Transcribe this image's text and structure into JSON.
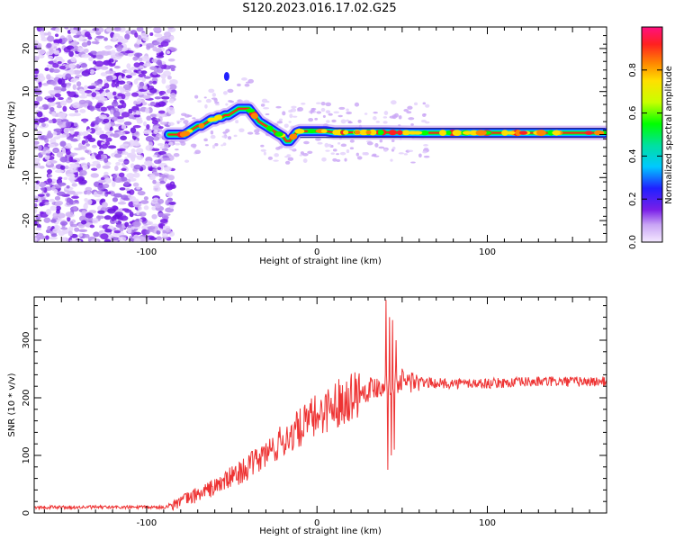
{
  "title": "S120.2023.016.17.02.G25",
  "chart_data": [
    {
      "type": "heatmap",
      "title": "S120.2023.016.17.02.G25",
      "xlabel": "Height of straight line (km)",
      "ylabel": "Frequency (Hz)",
      "xlim": [
        -166,
        170
      ],
      "ylim": [
        -25,
        25
      ],
      "x_ticks": [
        -100,
        0,
        100
      ],
      "y_ticks": [
        -20,
        -10,
        0,
        10,
        20
      ],
      "colorbar": {
        "label": "Normalized spectral amplitude",
        "range": [
          0,
          1
        ],
        "ticks": [
          0.0,
          0.2,
          0.4,
          0.6,
          0.8
        ],
        "colors": [
          "#f4e8ff",
          "#c9a5f5",
          "#7a1fe8",
          "#2020ff",
          "#00c8ff",
          "#00e0a0",
          "#00ff00",
          "#c8ff00",
          "#ffe000",
          "#ff8800",
          "#ff2020",
          "#ff1080"
        ]
      },
      "ridge": {
        "x": [
          -87,
          -83,
          -80,
          -78,
          -76,
          -74,
          -72,
          -70,
          -68,
          -66,
          -64,
          -62,
          -60,
          -58,
          -56,
          -54,
          -52,
          -50,
          -48,
          -46,
          -44,
          -42,
          -40,
          -38,
          -36,
          -34,
          -32,
          -30,
          -28,
          -26,
          -24,
          -22,
          -20,
          -18,
          -16,
          -14,
          -12,
          -10,
          -8,
          -5,
          0,
          5,
          10,
          20,
          30,
          40,
          60,
          80,
          100,
          120,
          140,
          160,
          169
        ],
        "y": [
          0,
          0,
          0,
          0,
          0.5,
          1.0,
          1.5,
          2.0,
          2.0,
          2.5,
          3.0,
          3.5,
          3.5,
          4.0,
          4.0,
          4.5,
          4.5,
          5.0,
          5.5,
          6.0,
          6.0,
          6.0,
          6.0,
          5.0,
          4.0,
          3.0,
          2.5,
          2.0,
          1.5,
          1.0,
          0.5,
          0.0,
          -0.5,
          -1.5,
          -1.5,
          -0.5,
          0.5,
          0.8,
          0.8,
          0.8,
          0.8,
          0.8,
          0.5,
          0.5,
          0.5,
          0.5,
          0.4,
          0.4,
          0.4,
          0.4,
          0.4,
          0.4,
          0.4
        ]
      }
    },
    {
      "type": "line",
      "xlabel": "Height of straight line (km)",
      "ylabel": "SNR (10 * v/v)",
      "xlim": [
        -166,
        170
      ],
      "ylim": [
        0,
        375
      ],
      "x_ticks": [
        -100,
        0,
        100
      ],
      "y_ticks": [
        0,
        100,
        200,
        300
      ],
      "color": "#ee3333",
      "trend": {
        "x": [
          -166,
          -90,
          -80,
          -60,
          -40,
          -20,
          0,
          20,
          30,
          40,
          50,
          70,
          100,
          130,
          170
        ],
        "y": [
          10,
          10,
          20,
          45,
          80,
          125,
          170,
          205,
          215,
          225,
          230,
          225,
          225,
          228,
          228
        ]
      },
      "spikes": [
        {
          "x": 40.5,
          "y": 370
        },
        {
          "x": 41.5,
          "y": 75
        },
        {
          "x": 42.5,
          "y": 340
        },
        {
          "x": 43.5,
          "y": 100
        },
        {
          "x": 44.5,
          "y": 335
        },
        {
          "x": 45.5,
          "y": 110
        },
        {
          "x": 46.5,
          "y": 300
        }
      ]
    }
  ]
}
